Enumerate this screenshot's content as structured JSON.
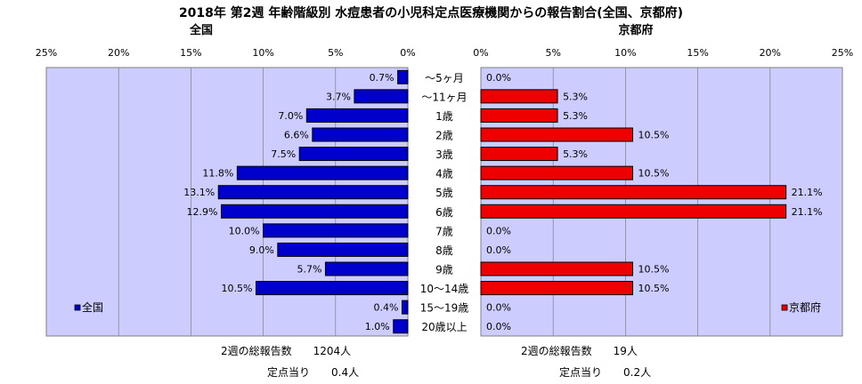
{
  "chart_data": {
    "type": "bar",
    "title": "2018年 第2週 年齢階級別 水痘患者の小児科定点医療機関からの報告割合(全国、京都府)",
    "categories": [
      "～5ヶ月",
      "～11ヶ月",
      "1歳",
      "2歳",
      "3歳",
      "4歳",
      "5歳",
      "6歳",
      "7歳",
      "8歳",
      "9歳",
      "10～14歳",
      "15～19歳",
      "20歳以上"
    ],
    "xlim": [
      0,
      25
    ],
    "ticks": [
      "25%",
      "20%",
      "15%",
      "10%",
      "5%",
      "0%"
    ],
    "ticks_right": [
      "0%",
      "5%",
      "10%",
      "15%",
      "20%",
      "25%"
    ],
    "grid": true,
    "series": [
      {
        "name": "全国",
        "panel_title": "全国",
        "color": "#0000cc",
        "values": [
          0.7,
          3.7,
          7.0,
          6.6,
          7.5,
          11.8,
          13.1,
          12.9,
          10.0,
          9.0,
          5.7,
          10.5,
          0.4,
          1.0
        ],
        "labels": [
          "0.7%",
          "3.7%",
          "7.0%",
          "6.6%",
          "7.5%",
          "11.8%",
          "13.1%",
          "12.9%",
          "10.0%",
          "9.0%",
          "5.7%",
          "10.5%",
          "0.4%",
          "1.0%"
        ],
        "legend": "全国",
        "legend_placement": "bottom-left"
      },
      {
        "name": "京都府",
        "panel_title": "京都府",
        "color": "#ee0000",
        "values": [
          0.0,
          5.3,
          5.3,
          10.5,
          5.3,
          10.5,
          21.1,
          21.1,
          0.0,
          0.0,
          10.5,
          10.5,
          0.0,
          0.0
        ],
        "labels": [
          "0.0%",
          "5.3%",
          "5.3%",
          "10.5%",
          "5.3%",
          "10.5%",
          "21.1%",
          "21.1%",
          "0.0%",
          "0.0%",
          "10.5%",
          "10.5%",
          "0.0%",
          "0.0%"
        ],
        "legend": "京都府",
        "legend_placement": "bottom-right"
      }
    ]
  },
  "footer": {
    "national_total": "2週の総報告数　　1204人",
    "national_per_site": "定点当り　　0.4人",
    "kyoto_total": "2週の総報告数　　19人",
    "kyoto_per_site": "定点当り　　0.2人"
  },
  "colors": {
    "plot_background": "#ccccff",
    "national_bar": "#0000cc",
    "kyoto_bar": "#ee0000"
  }
}
